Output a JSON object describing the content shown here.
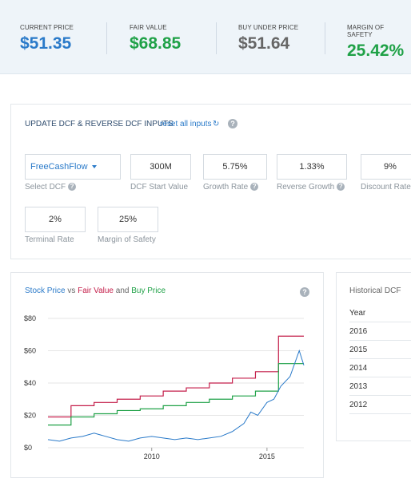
{
  "summary": {
    "current_price": {
      "label": "CURRENT PRICE",
      "value": "$51.35",
      "color": "#2a7ac9"
    },
    "fair_value": {
      "label": "FAIR VALUE",
      "value": "$68.85",
      "color": "#1fa147"
    },
    "buy_under": {
      "label": "BUY UNDER PRICE",
      "value": "$51.64",
      "color": "#666666"
    },
    "margin_of_safety": {
      "label": "MARGIN OF SAFETY",
      "value": "25.42%",
      "color": "#1fa147"
    }
  },
  "inputs": {
    "header": "UPDATE DCF & REVERSE DCF INPUTS",
    "reset_label": "reset all inputs",
    "reset_icon": "refresh-icon",
    "help_icon": "question-circle-icon",
    "select_dcf": {
      "value": "FreeCashFlow",
      "label": "Select DCF"
    },
    "dcf_start": {
      "value": "300M",
      "label": "DCF Start Value"
    },
    "growth_rate": {
      "value": "5.75%",
      "label": "Growth Rate"
    },
    "reverse_growth": {
      "value": "1.33%",
      "label": "Reverse Growth"
    },
    "discount_rate": {
      "value": "9%",
      "label": "Discount Rate"
    },
    "terminal_rate": {
      "value": "2%",
      "label": "Terminal Rate"
    },
    "margin_of_safety": {
      "value": "25%",
      "label": "Margin of Safety"
    }
  },
  "chart": {
    "title_parts": {
      "stock": "Stock Price",
      "vs": " vs ",
      "fair": "Fair Value",
      "and": " and ",
      "buy": "Buy Price"
    },
    "colors": {
      "stock": "#2a7ac9",
      "fair": "#c41e4a",
      "buy": "#1fa147"
    }
  },
  "chart_data": {
    "type": "line",
    "title": "Stock Price vs Fair Value and Buy Price",
    "xlabel": "",
    "ylabel": "",
    "ylim": [
      0,
      80
    ],
    "xlim": [
      2005.5,
      2016.6
    ],
    "y_ticks": [
      "$0",
      "$20",
      "$40",
      "$60",
      "$80"
    ],
    "x_ticks": [
      "2010",
      "2015"
    ],
    "grid": true,
    "series": [
      {
        "name": "Fair Value",
        "step": true,
        "x": [
          2005.5,
          2006.5,
          2007.5,
          2008.5,
          2009.5,
          2010.5,
          2011.5,
          2012.5,
          2013.5,
          2014.5,
          2015.5,
          2016.6
        ],
        "values": [
          19,
          26,
          28,
          30,
          32,
          35,
          37,
          40,
          43,
          47,
          69,
          69
        ]
      },
      {
        "name": "Buy Price",
        "step": true,
        "x": [
          2005.5,
          2006.5,
          2007.5,
          2008.5,
          2009.5,
          2010.5,
          2011.5,
          2012.5,
          2013.5,
          2014.5,
          2015.5,
          2016.6
        ],
        "values": [
          14,
          19,
          21,
          23,
          24,
          26,
          28,
          30,
          32,
          35,
          52,
          52
        ]
      },
      {
        "name": "Stock Price",
        "step": false,
        "x": [
          2005.5,
          2006.0,
          2006.5,
          2007.0,
          2007.5,
          2008.0,
          2008.5,
          2009.0,
          2009.5,
          2010.0,
          2010.5,
          2011.0,
          2011.5,
          2012.0,
          2012.5,
          2013.0,
          2013.5,
          2014.0,
          2014.3,
          2014.6,
          2015.0,
          2015.3,
          2015.6,
          2016.0,
          2016.2,
          2016.4,
          2016.6
        ],
        "values": [
          5,
          4,
          6,
          7,
          9,
          7,
          5,
          4,
          6,
          7,
          6,
          5,
          6,
          5,
          6,
          7,
          10,
          15,
          22,
          20,
          28,
          30,
          38,
          44,
          52,
          60,
          51
        ]
      }
    ]
  },
  "historical": {
    "title": "Historical DCF",
    "rows": [
      "Year",
      "2016",
      "2015",
      "2014",
      "2013",
      "2012"
    ]
  }
}
